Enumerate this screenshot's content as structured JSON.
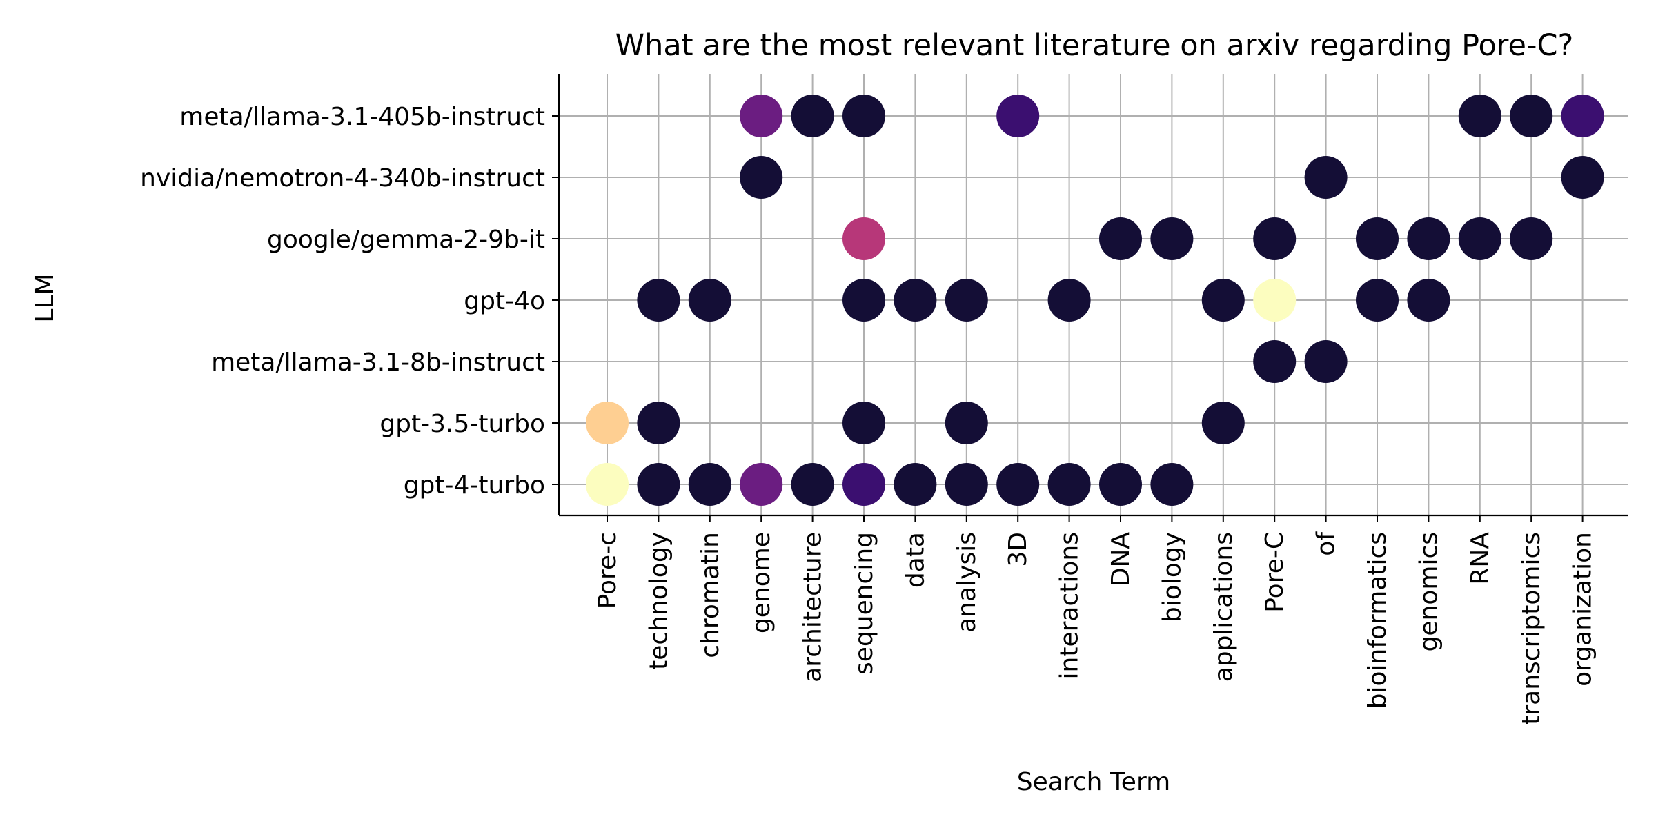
{
  "chart_data": {
    "type": "scatter",
    "title": "What are the most relevant literature on arxiv regarding Pore-C?",
    "xlabel": "Search Term",
    "ylabel": "LLM",
    "grid": true,
    "colormap": "magma",
    "categories_x": [
      "Pore-c",
      "technology",
      "chromatin",
      "genome",
      "architecture",
      "sequencing",
      "data",
      "analysis",
      "3D",
      "interactions",
      "DNA",
      "biology",
      "applications",
      "Pore-C",
      "of",
      "bioinformatics",
      "genomics",
      "RNA",
      "transcriptomics",
      "organization"
    ],
    "categories_y": [
      "gpt-4-turbo",
      "gpt-3.5-turbo",
      "meta/llama-3.1-8b-instruct",
      "gpt-4o",
      "google/gemma-2-9b-it",
      "nvidia/nemotron-4-340b-instruct",
      "meta/llama-3.1-405b-instruct"
    ],
    "points": [
      {
        "llm": "meta/llama-3.1-405b-instruct",
        "term": "genome",
        "color": "#6b1d81"
      },
      {
        "llm": "meta/llama-3.1-405b-instruct",
        "term": "architecture",
        "color": "#140e36"
      },
      {
        "llm": "meta/llama-3.1-405b-instruct",
        "term": "sequencing",
        "color": "#140e36"
      },
      {
        "llm": "meta/llama-3.1-405b-instruct",
        "term": "3D",
        "color": "#3b0f70"
      },
      {
        "llm": "meta/llama-3.1-405b-instruct",
        "term": "RNA",
        "color": "#140e36"
      },
      {
        "llm": "meta/llama-3.1-405b-instruct",
        "term": "transcriptomics",
        "color": "#140e36"
      },
      {
        "llm": "meta/llama-3.1-405b-instruct",
        "term": "organization",
        "color": "#3b0f70"
      },
      {
        "llm": "nvidia/nemotron-4-340b-instruct",
        "term": "genome",
        "color": "#140e36"
      },
      {
        "llm": "nvidia/nemotron-4-340b-instruct",
        "term": "of",
        "color": "#140e36"
      },
      {
        "llm": "nvidia/nemotron-4-340b-instruct",
        "term": "organization",
        "color": "#140e36"
      },
      {
        "llm": "google/gemma-2-9b-it",
        "term": "sequencing",
        "color": "#b73779"
      },
      {
        "llm": "google/gemma-2-9b-it",
        "term": "DNA",
        "color": "#140e36"
      },
      {
        "llm": "google/gemma-2-9b-it",
        "term": "biology",
        "color": "#140e36"
      },
      {
        "llm": "google/gemma-2-9b-it",
        "term": "Pore-C",
        "color": "#140e36"
      },
      {
        "llm": "google/gemma-2-9b-it",
        "term": "bioinformatics",
        "color": "#140e36"
      },
      {
        "llm": "google/gemma-2-9b-it",
        "term": "genomics",
        "color": "#140e36"
      },
      {
        "llm": "google/gemma-2-9b-it",
        "term": "RNA",
        "color": "#140e36"
      },
      {
        "llm": "google/gemma-2-9b-it",
        "term": "transcriptomics",
        "color": "#140e36"
      },
      {
        "llm": "gpt-4o",
        "term": "technology",
        "color": "#140e36"
      },
      {
        "llm": "gpt-4o",
        "term": "chromatin",
        "color": "#140e36"
      },
      {
        "llm": "gpt-4o",
        "term": "sequencing",
        "color": "#140e36"
      },
      {
        "llm": "gpt-4o",
        "term": "data",
        "color": "#140e36"
      },
      {
        "llm": "gpt-4o",
        "term": "analysis",
        "color": "#140e36"
      },
      {
        "llm": "gpt-4o",
        "term": "interactions",
        "color": "#140e36"
      },
      {
        "llm": "gpt-4o",
        "term": "applications",
        "color": "#140e36"
      },
      {
        "llm": "gpt-4o",
        "term": "Pore-C",
        "color": "#fcfdbf"
      },
      {
        "llm": "gpt-4o",
        "term": "bioinformatics",
        "color": "#140e36"
      },
      {
        "llm": "gpt-4o",
        "term": "genomics",
        "color": "#140e36"
      },
      {
        "llm": "meta/llama-3.1-8b-instruct",
        "term": "Pore-C",
        "color": "#140e36"
      },
      {
        "llm": "meta/llama-3.1-8b-instruct",
        "term": "of",
        "color": "#140e36"
      },
      {
        "llm": "gpt-3.5-turbo",
        "term": "Pore-c",
        "color": "#fecf92"
      },
      {
        "llm": "gpt-3.5-turbo",
        "term": "technology",
        "color": "#140e36"
      },
      {
        "llm": "gpt-3.5-turbo",
        "term": "sequencing",
        "color": "#140e36"
      },
      {
        "llm": "gpt-3.5-turbo",
        "term": "analysis",
        "color": "#140e36"
      },
      {
        "llm": "gpt-3.5-turbo",
        "term": "applications",
        "color": "#140e36"
      },
      {
        "llm": "gpt-4-turbo",
        "term": "Pore-c",
        "color": "#fcfdbf"
      },
      {
        "llm": "gpt-4-turbo",
        "term": "technology",
        "color": "#140e36"
      },
      {
        "llm": "gpt-4-turbo",
        "term": "chromatin",
        "color": "#140e36"
      },
      {
        "llm": "gpt-4-turbo",
        "term": "genome",
        "color": "#6b1d81"
      },
      {
        "llm": "gpt-4-turbo",
        "term": "architecture",
        "color": "#140e36"
      },
      {
        "llm": "gpt-4-turbo",
        "term": "sequencing",
        "color": "#3b0f70"
      },
      {
        "llm": "gpt-4-turbo",
        "term": "data",
        "color": "#140e36"
      },
      {
        "llm": "gpt-4-turbo",
        "term": "analysis",
        "color": "#140e36"
      },
      {
        "llm": "gpt-4-turbo",
        "term": "3D",
        "color": "#140e36"
      },
      {
        "llm": "gpt-4-turbo",
        "term": "interactions",
        "color": "#140e36"
      },
      {
        "llm": "gpt-4-turbo",
        "term": "DNA",
        "color": "#140e36"
      },
      {
        "llm": "gpt-4-turbo",
        "term": "biology",
        "color": "#140e36"
      }
    ]
  }
}
